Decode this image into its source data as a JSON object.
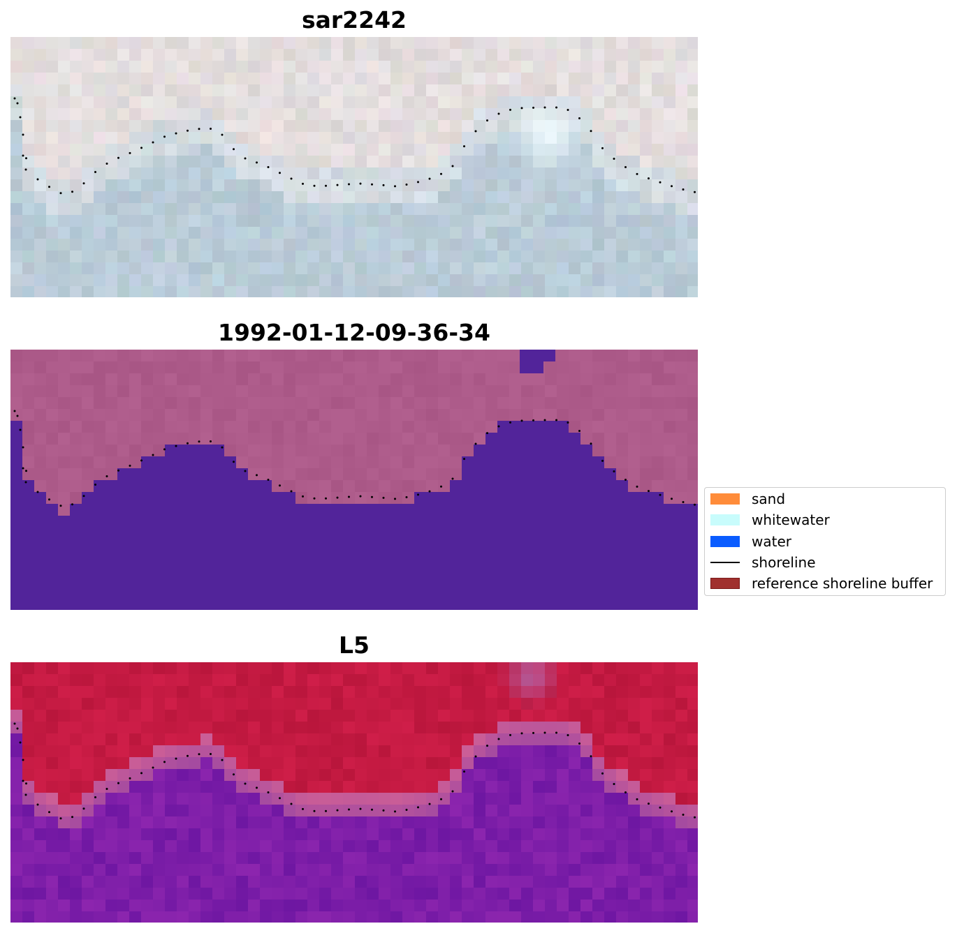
{
  "panels": [
    {
      "title": "sar2242",
      "style": "rgb"
    },
    {
      "title": "1992-01-12-09-36-34",
      "style": "classified"
    },
    {
      "title": "L5",
      "style": "mndwi"
    }
  ],
  "legend": {
    "items": [
      {
        "label": "sand",
        "kind": "patch",
        "color": "#ff8c3a"
      },
      {
        "label": "whitewater",
        "kind": "patch",
        "color": "#c8fcfc"
      },
      {
        "label": "water",
        "kind": "patch",
        "color": "#0a5cff"
      },
      {
        "label": "shoreline",
        "kind": "line",
        "color": "#000000"
      },
      {
        "label": "reference shoreline buffer",
        "kind": "patch",
        "color": "#a0302e",
        "edge": "#7a1a1a"
      }
    ]
  },
  "colors": {
    "classified_land": "#ad5b8a",
    "classified_water": "#52249a",
    "mndwi_land": "#c41a42",
    "mndwi_water": "#7d1ea8"
  }
}
